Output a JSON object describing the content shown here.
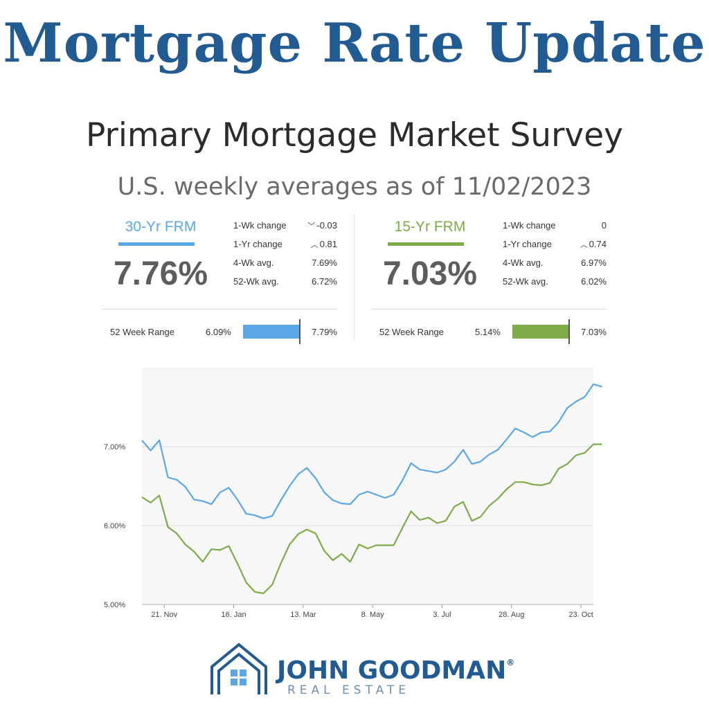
{
  "title": "Mortgage Rate Update",
  "subtitle": "Primary Mortgage Market Survey",
  "as_of": "U.S. weekly averages as of 11/02/2023",
  "colors": {
    "title": "#225b92",
    "frm30": "#5ba7e6",
    "frm15": "#7eab48"
  },
  "frm30": {
    "name": "30-Yr FRM",
    "rate": "7.76%",
    "stats": [
      {
        "label": "1-Wk change",
        "direction": "down",
        "value": "-0.03"
      },
      {
        "label": "1-Yr change",
        "direction": "up",
        "value": "0.81"
      },
      {
        "label": "4-Wk avg.",
        "direction": "",
        "value": "7.69%"
      },
      {
        "label": "52-Wk avg.",
        "direction": "",
        "value": "6.72%"
      }
    ],
    "range_label": "52 Week Range",
    "range_low": "6.09%",
    "range_high": "7.79%"
  },
  "frm15": {
    "name": "15-Yr FRM",
    "rate": "7.03%",
    "stats": [
      {
        "label": "1-Wk change",
        "direction": "",
        "value": "0"
      },
      {
        "label": "1-Yr change",
        "direction": "up",
        "value": "0.74"
      },
      {
        "label": "4-Wk avg.",
        "direction": "",
        "value": "6.97%"
      },
      {
        "label": "52-Wk avg.",
        "direction": "",
        "value": "6.02%"
      }
    ],
    "range_label": "52 Week Range",
    "range_low": "5.14%",
    "range_high": "7.03%"
  },
  "chart_data": {
    "type": "line",
    "x_start": "2022-11-03",
    "x_end": "2023-11-02",
    "x_tick_labels": [
      "21. Nov",
      "16. Jan",
      "13. Mar",
      "8. May",
      "3. Jul",
      "28. Aug",
      "23. Oct"
    ],
    "y_tick_labels": [
      "5.00%",
      "6.00%",
      "7.00%"
    ],
    "ylim": [
      5.0,
      8.0
    ],
    "y_ticks": [
      5.0,
      6.0,
      7.0
    ],
    "grid": true,
    "series": [
      {
        "name": "30-Yr FRM",
        "color": "#5ba7e6",
        "values": [
          7.08,
          6.95,
          7.08,
          6.61,
          6.58,
          6.49,
          6.33,
          6.31,
          6.27,
          6.42,
          6.48,
          6.33,
          6.15,
          6.13,
          6.09,
          6.12,
          6.32,
          6.5,
          6.65,
          6.73,
          6.6,
          6.42,
          6.32,
          6.28,
          6.27,
          6.39,
          6.43,
          6.39,
          6.35,
          6.39,
          6.57,
          6.79,
          6.71,
          6.69,
          6.67,
          6.71,
          6.81,
          6.96,
          6.78,
          6.81,
          6.9,
          6.96,
          7.09,
          7.23,
          7.18,
          7.12,
          7.18,
          7.19,
          7.31,
          7.49,
          7.57,
          7.63,
          7.79,
          7.76
        ]
      },
      {
        "name": "15-Yr FRM",
        "color": "#7eab48",
        "values": [
          6.36,
          6.29,
          6.38,
          5.98,
          5.9,
          5.76,
          5.67,
          5.54,
          5.7,
          5.69,
          5.74,
          5.52,
          5.28,
          5.16,
          5.14,
          5.25,
          5.52,
          5.76,
          5.89,
          5.95,
          5.9,
          5.68,
          5.56,
          5.64,
          5.54,
          5.76,
          5.71,
          5.75,
          5.75,
          5.75,
          5.97,
          6.18,
          6.07,
          6.1,
          6.03,
          6.06,
          6.24,
          6.3,
          6.06,
          6.11,
          6.25,
          6.34,
          6.46,
          6.55,
          6.55,
          6.52,
          6.51,
          6.54,
          6.72,
          6.78,
          6.89,
          6.92,
          7.03,
          7.03
        ]
      }
    ]
  },
  "logo": {
    "name": "JOHN GOODMAN",
    "mark": "®",
    "sub": "REAL ESTATE"
  }
}
